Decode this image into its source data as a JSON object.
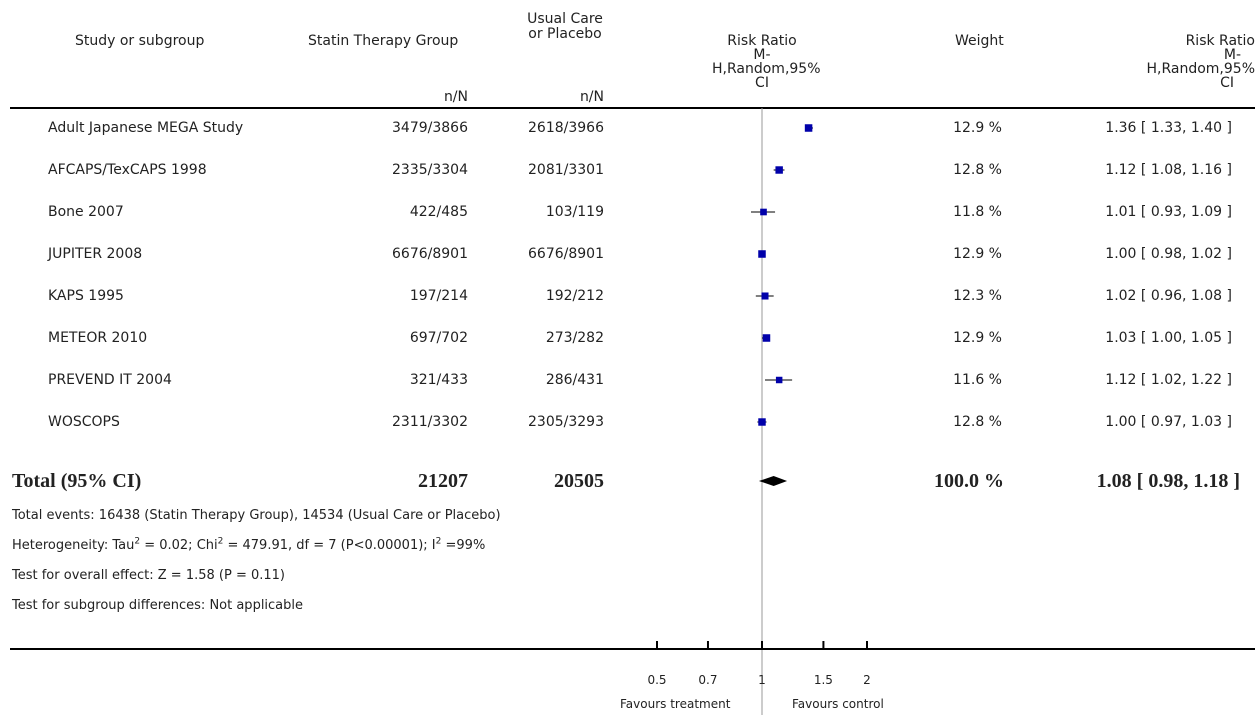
{
  "columns": {
    "study": "Study or subgroup",
    "treatment": "Statin Therapy Group",
    "treatment_unit": "n/N",
    "control_lines": [
      "Usual Care",
      "or Placebo"
    ],
    "control_unit": "n/N",
    "forest_lines": [
      "Risk Ratio",
      "M-",
      "H,Random,95%",
      "CI"
    ],
    "weight": "Weight",
    "effect_lines": [
      "Risk Ratio",
      "M-",
      "H,Random,95%",
      "CI"
    ]
  },
  "studies": [
    {
      "name": "Adult Japanese MEGA Study",
      "treatment": "3479/3866",
      "control": "2618/3966",
      "weight": "12.9 %",
      "ci_text": "1.36 [ 1.33, 1.40 ]"
    },
    {
      "name": "AFCAPS/TexCAPS 1998",
      "treatment": "2335/3304",
      "control": "2081/3301",
      "weight": "12.8 %",
      "ci_text": "1.12 [ 1.08, 1.16 ]"
    },
    {
      "name": "Bone 2007",
      "treatment": "422/485",
      "control": "103/119",
      "weight": "11.8 %",
      "ci_text": "1.01 [ 0.93, 1.09 ]"
    },
    {
      "name": "JUPITER 2008",
      "treatment": "6676/8901",
      "control": "6676/8901",
      "weight": "12.9 %",
      "ci_text": "1.00 [ 0.98, 1.02 ]"
    },
    {
      "name": "KAPS 1995",
      "treatment": "197/214",
      "control": "192/212",
      "weight": "12.3 %",
      "ci_text": "1.02 [ 0.96, 1.08 ]"
    },
    {
      "name": "METEOR 2010",
      "treatment": "697/702",
      "control": "273/282",
      "weight": "12.9 %",
      "ci_text": "1.03 [ 1.00, 1.05 ]"
    },
    {
      "name": "PREVEND IT 2004",
      "treatment": "321/433",
      "control": "286/431",
      "weight": "11.6 %",
      "ci_text": "1.12 [ 1.02, 1.22 ]"
    },
    {
      "name": "WOSCOPS",
      "treatment": "2311/3302",
      "control": "2305/3293",
      "weight": "12.8 %",
      "ci_text": "1.00 [ 0.97, 1.03 ]"
    }
  ],
  "total": {
    "label": "Total (95% CI)",
    "treatment": "21207",
    "control": "20505",
    "weight": "100.0 %",
    "ci_text": "1.08 [ 0.98, 1.18 ]"
  },
  "footnotes": {
    "events": "Total events: 16438 (Statin Therapy Group), 14534 (Usual Care or Placebo)",
    "het_a": "Heterogeneity: Tau",
    "het_b": "2",
    "het_c": " = 0.02; Chi",
    "het_d": "2",
    "het_e": " = 479.91, df = 7 (P<0.00001); I",
    "het_f": "2",
    "het_g": " =99%",
    "overall": "Test for overall effect: Z = 1.58 (P = 0.11)",
    "subgroup": "Test for subgroup differences: Not applicable"
  },
  "axis": {
    "favours_left": "Favours treatment",
    "favours_right": "Favours control"
  },
  "colors": {
    "marker": "#0000aa",
    "line": "#000000",
    "axis_ref": "#999999"
  },
  "chart_data": {
    "type": "scatter",
    "scale": "log",
    "xlim": [
      0.5,
      2
    ],
    "ticks": [
      0.5,
      0.7,
      1,
      1.5,
      2
    ],
    "tick_labels": [
      "0.5",
      "0.7",
      "1",
      "1.5",
      "2"
    ],
    "reference_line": 1,
    "series": [
      {
        "name": "Risk Ratio",
        "points": [
          {
            "study": "Adult Japanese MEGA Study",
            "rr": 1.36,
            "lo": 1.33,
            "hi": 1.4,
            "weight": 12.9
          },
          {
            "study": "AFCAPS/TexCAPS 1998",
            "rr": 1.12,
            "lo": 1.08,
            "hi": 1.16,
            "weight": 12.8
          },
          {
            "study": "Bone 2007",
            "rr": 1.01,
            "lo": 0.93,
            "hi": 1.09,
            "weight": 11.8
          },
          {
            "study": "JUPITER 2008",
            "rr": 1.0,
            "lo": 0.98,
            "hi": 1.02,
            "weight": 12.9
          },
          {
            "study": "KAPS 1995",
            "rr": 1.02,
            "lo": 0.96,
            "hi": 1.08,
            "weight": 12.3
          },
          {
            "study": "METEOR 2010",
            "rr": 1.03,
            "lo": 1.0,
            "hi": 1.05,
            "weight": 12.9
          },
          {
            "study": "PREVEND IT 2004",
            "rr": 1.12,
            "lo": 1.02,
            "hi": 1.22,
            "weight": 11.6
          },
          {
            "study": "WOSCOPS",
            "rr": 1.0,
            "lo": 0.97,
            "hi": 1.03,
            "weight": 12.8
          }
        ]
      }
    ],
    "pooled": {
      "rr": 1.08,
      "lo": 0.98,
      "hi": 1.18
    }
  }
}
